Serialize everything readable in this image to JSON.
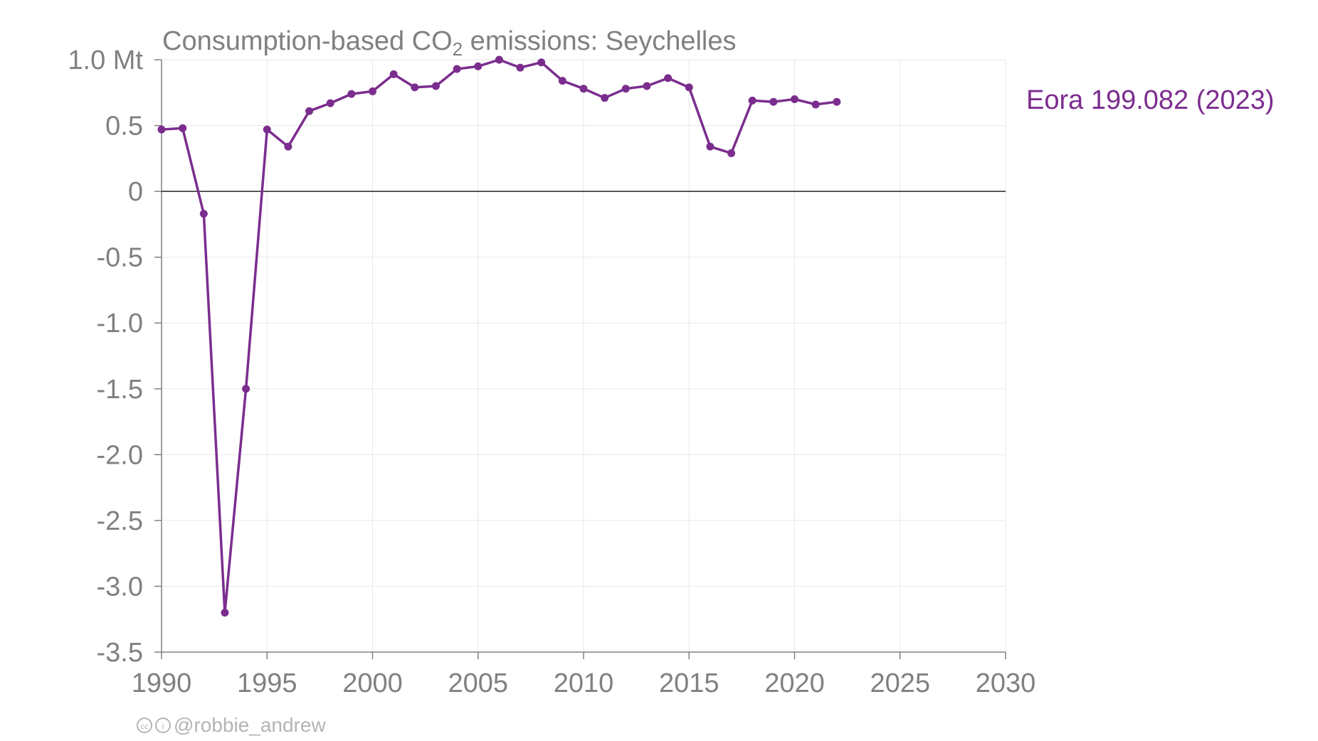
{
  "chart_data": {
    "type": "line",
    "title_main": "Consumption-based CO",
    "title_sub": "2",
    "title_rest": " emissions: Seychelles",
    "x_ticks": [
      "1990",
      "1995",
      "2000",
      "2005",
      "2010",
      "2015",
      "2020",
      "2025",
      "2030"
    ],
    "y_ticks": [
      "1.0 Mt",
      "0.5",
      "0",
      "-0.5",
      "-1.0",
      "-1.5",
      "-2.0",
      "-2.5",
      "-3.0",
      "-3.5"
    ],
    "y_tick_values": [
      1.0,
      0.5,
      0,
      -0.5,
      -1.0,
      -1.5,
      -2.0,
      -2.5,
      -3.0,
      -3.5
    ],
    "x_tick_values": [
      1990,
      1995,
      2000,
      2005,
      2010,
      2015,
      2020,
      2025,
      2030
    ],
    "xlim": [
      1990,
      2030
    ],
    "ylim": [
      -3.5,
      1.0
    ],
    "grid": true,
    "series": [
      {
        "name": "Eora 199.082 (2023)",
        "color": "#7b2d8e",
        "x": [
          1990,
          1991,
          1992,
          1993,
          1994,
          1995,
          1996,
          1997,
          1998,
          1999,
          2000,
          2001,
          2002,
          2003,
          2004,
          2005,
          2006,
          2007,
          2008,
          2009,
          2010,
          2011,
          2012,
          2013,
          2014,
          2015,
          2016,
          2017,
          2018,
          2019,
          2020,
          2021,
          2022
        ],
        "y": [
          0.47,
          0.48,
          -0.17,
          -3.2,
          -1.5,
          0.47,
          0.34,
          0.61,
          0.67,
          0.74,
          0.76,
          0.89,
          0.79,
          0.8,
          0.93,
          0.95,
          1.0,
          0.94,
          0.98,
          0.84,
          0.78,
          0.71,
          0.78,
          0.8,
          0.86,
          0.79,
          0.34,
          0.29,
          0.69,
          0.68,
          0.7,
          0.66,
          0.68
        ]
      }
    ]
  },
  "credit": {
    "handle": "@robbie_andrew",
    "cc_icon": "cc-icon",
    "by_icon": "attribution-icon"
  }
}
